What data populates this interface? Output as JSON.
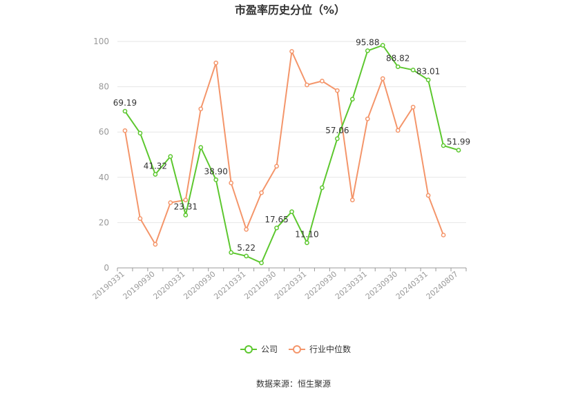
{
  "chart_data": {
    "type": "line",
    "title": "市盈率历史分位（%）",
    "source": "数据来源：恒生聚源",
    "ylim": [
      0,
      100
    ],
    "yticks": [
      0,
      20,
      40,
      60,
      80,
      100
    ],
    "x": [
      "20190331",
      "20190630",
      "20190930",
      "20191231",
      "20200331",
      "20200630",
      "20200930",
      "20201231",
      "20210331",
      "20210630",
      "20210930",
      "20211231",
      "20220331",
      "20220630",
      "20220930",
      "20221231",
      "20230331",
      "20230630",
      "20230930",
      "20231231",
      "20240331",
      "20240630",
      "20240807"
    ],
    "xticks": [
      "20190331",
      "20190930",
      "20200331",
      "20200930",
      "20210331",
      "20210930",
      "20220331",
      "20220930",
      "20230331",
      "20230930",
      "20240331",
      "20240807"
    ],
    "legend_position": "bottom",
    "grid": true,
    "series": [
      {
        "name": "公司",
        "color": "#5cc72e",
        "values": [
          69.19,
          59.5,
          41.32,
          49.2,
          23.31,
          53.2,
          38.9,
          6.8,
          5.22,
          2.2,
          17.65,
          24.8,
          11.1,
          35.4,
          57.06,
          74.5,
          95.88,
          98.3,
          88.82,
          87.4,
          83.01,
          54.0,
          51.99
        ],
        "labels": {
          "0": "69.19",
          "2": "41.32",
          "4": "23.31",
          "6": "38.90",
          "8": "5.22",
          "10": "17.65",
          "12": "11.10",
          "14": "57.06",
          "16": "95.88",
          "18": "88.82",
          "20": "83.01",
          "22": "51.99"
        }
      },
      {
        "name": "行业中位数",
        "color": "#f4956a",
        "values": [
          60.6,
          21.8,
          10.4,
          28.8,
          30.0,
          70.2,
          90.5,
          37.5,
          17.0,
          33.2,
          44.9,
          95.6,
          80.8,
          82.5,
          78.3,
          30.0,
          65.8,
          83.6,
          60.7,
          71.0,
          32.0,
          14.5,
          null
        ]
      }
    ]
  }
}
